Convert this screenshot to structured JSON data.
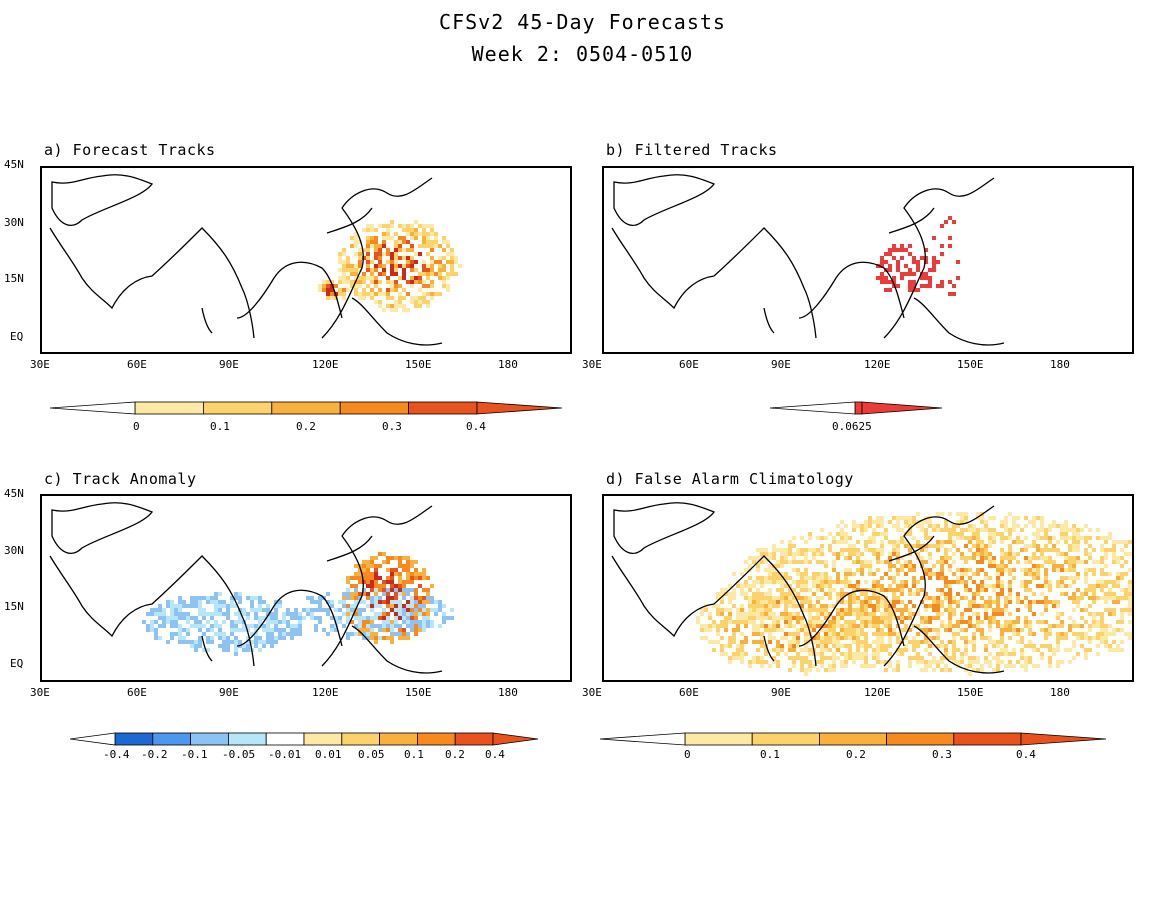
{
  "title": {
    "line1": "CFSv2 45-Day Forecasts",
    "line2": "Week 2: 0504-0510"
  },
  "axes": {
    "x_ticks": [
      "30E",
      "60E",
      "90E",
      "120E",
      "150E",
      "180"
    ],
    "y_ticks": [
      "45N",
      "30N",
      "15N",
      "EQ"
    ]
  },
  "panels": [
    {
      "label": "a) Forecast Tracks",
      "palette": "warm",
      "colorbar_labels": [
        "0",
        "0.1",
        "0.2",
        "0.3",
        "0.4"
      ]
    },
    {
      "label": "b) Filtered Tracks",
      "palette": "red",
      "colorbar_labels": [
        "0.0625"
      ]
    },
    {
      "label": "c) Track Anomaly",
      "palette": "diverging",
      "colorbar_labels": [
        "-0.4",
        "-0.2",
        "-0.1",
        "-0.05",
        "-0.01",
        "0.01",
        "0.05",
        "0.1",
        "0.2",
        "0.4"
      ]
    },
    {
      "label": "d) False Alarm Climatology",
      "palette": "warm",
      "colorbar_labels": [
        "0",
        "0.1",
        "0.2",
        "0.3",
        "0.4"
      ]
    }
  ],
  "colors": {
    "warm": [
      "#fde9a6",
      "#fcd26b",
      "#f9b13e",
      "#f68a1f",
      "#e8521c",
      "#c92a1a"
    ],
    "red": [
      "#ec3b3b"
    ],
    "blue_neg": [
      "#1f67d1",
      "#4d97ec",
      "#8cc3f3",
      "#b6e6f7"
    ],
    "neutral": "#ffffff"
  }
}
